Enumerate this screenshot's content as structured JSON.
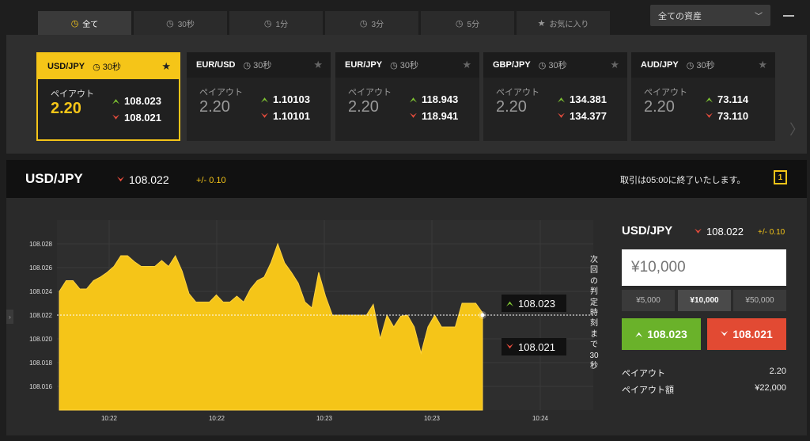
{
  "tabs": [
    {
      "label": "全て",
      "icon": "clock-icon",
      "active": true
    },
    {
      "label": "30秒",
      "icon": "clock-icon"
    },
    {
      "label": "1分",
      "icon": "clock-icon"
    },
    {
      "label": "3分",
      "icon": "clock-icon"
    },
    {
      "label": "5分",
      "icon": "clock-icon"
    },
    {
      "label": "お気に入り",
      "icon": "star-icon"
    }
  ],
  "asset_filter": {
    "selected": "全ての資産"
  },
  "cards": [
    {
      "pair": "USD/JPY",
      "timer": "30秒",
      "payout_label": "ペイアウト",
      "payout": "2.20",
      "high": "108.023",
      "low": "108.021",
      "active": true
    },
    {
      "pair": "EUR/USD",
      "timer": "30秒",
      "payout_label": "ペイアウト",
      "payout": "2.20",
      "high": "1.10103",
      "low": "1.10101"
    },
    {
      "pair": "EUR/JPY",
      "timer": "30秒",
      "payout_label": "ペイアウト",
      "payout": "2.20",
      "high": "118.943",
      "low": "118.941"
    },
    {
      "pair": "GBP/JPY",
      "timer": "30秒",
      "payout_label": "ペイアウト",
      "payout": "2.20",
      "high": "134.381",
      "low": "134.377"
    },
    {
      "pair": "AUD/JPY",
      "timer": "30秒",
      "payout_label": "ペイアウト",
      "payout": "2.20",
      "high": "73.114",
      "low": "73.110"
    }
  ],
  "instrument": {
    "name": "USD/JPY",
    "price": "108.022",
    "change": "+/- 0.10",
    "message": "取引は05:00に終了いたします。",
    "icon_label": "1"
  },
  "chart": {
    "countdown_text": "次回の判定時刻まで30秒",
    "high_quote": "108.023",
    "low_quote": "108.021",
    "colors": {
      "area": "#f5c518",
      "grid": "#3a3a3a"
    }
  },
  "chart_data": {
    "type": "area",
    "title": "",
    "xlabel": "",
    "ylabel": "",
    "ylim": [
      108.014,
      108.03
    ],
    "y_ticks": [
      "108.028",
      "108.026",
      "108.024",
      "108.022",
      "108.020",
      "108.018",
      "108.016"
    ],
    "x_ticks": [
      "10:22",
      "10:22",
      "10:23",
      "10:23",
      "10:24"
    ],
    "current_value": 108.022,
    "series": [
      {
        "values": [
          108.024,
          108.0249,
          108.0249,
          108.0242,
          108.0242,
          108.0249,
          108.0252,
          108.0256,
          108.0261,
          108.027,
          108.027,
          108.0265,
          108.0261,
          108.0261,
          108.0261,
          108.0266,
          108.0261,
          108.027,
          108.0257,
          108.0238,
          108.0231,
          108.0231,
          108.0231,
          108.0237,
          108.0231,
          108.0231,
          108.0236,
          108.0231,
          108.0242,
          108.0249,
          108.0252,
          108.0264,
          108.028,
          108.0264,
          108.0256,
          108.0247,
          108.0231,
          108.0226,
          108.0256,
          108.0236,
          108.022,
          108.022,
          108.022,
          108.022,
          108.022,
          108.022,
          108.0229,
          108.02,
          108.022,
          108.021,
          108.0219,
          108.022,
          108.021,
          108.0188,
          108.021,
          108.022,
          108.021,
          108.021,
          108.021,
          108.023,
          108.023,
          108.023,
          108.0222
        ]
      }
    ]
  },
  "trade": {
    "pair": "USD/JPY",
    "price": "108.022",
    "change": "+/- 0.10",
    "amount_placeholder": "¥10,000",
    "presets": [
      "¥5,000",
      "¥10,000",
      "¥50,000"
    ],
    "high_label": "108.023",
    "low_label": "108.021",
    "payout_label": "ペイアウト",
    "payout_value": "2.20",
    "payout_amount_label": "ペイアウト額",
    "payout_amount_value": "¥22,000"
  }
}
